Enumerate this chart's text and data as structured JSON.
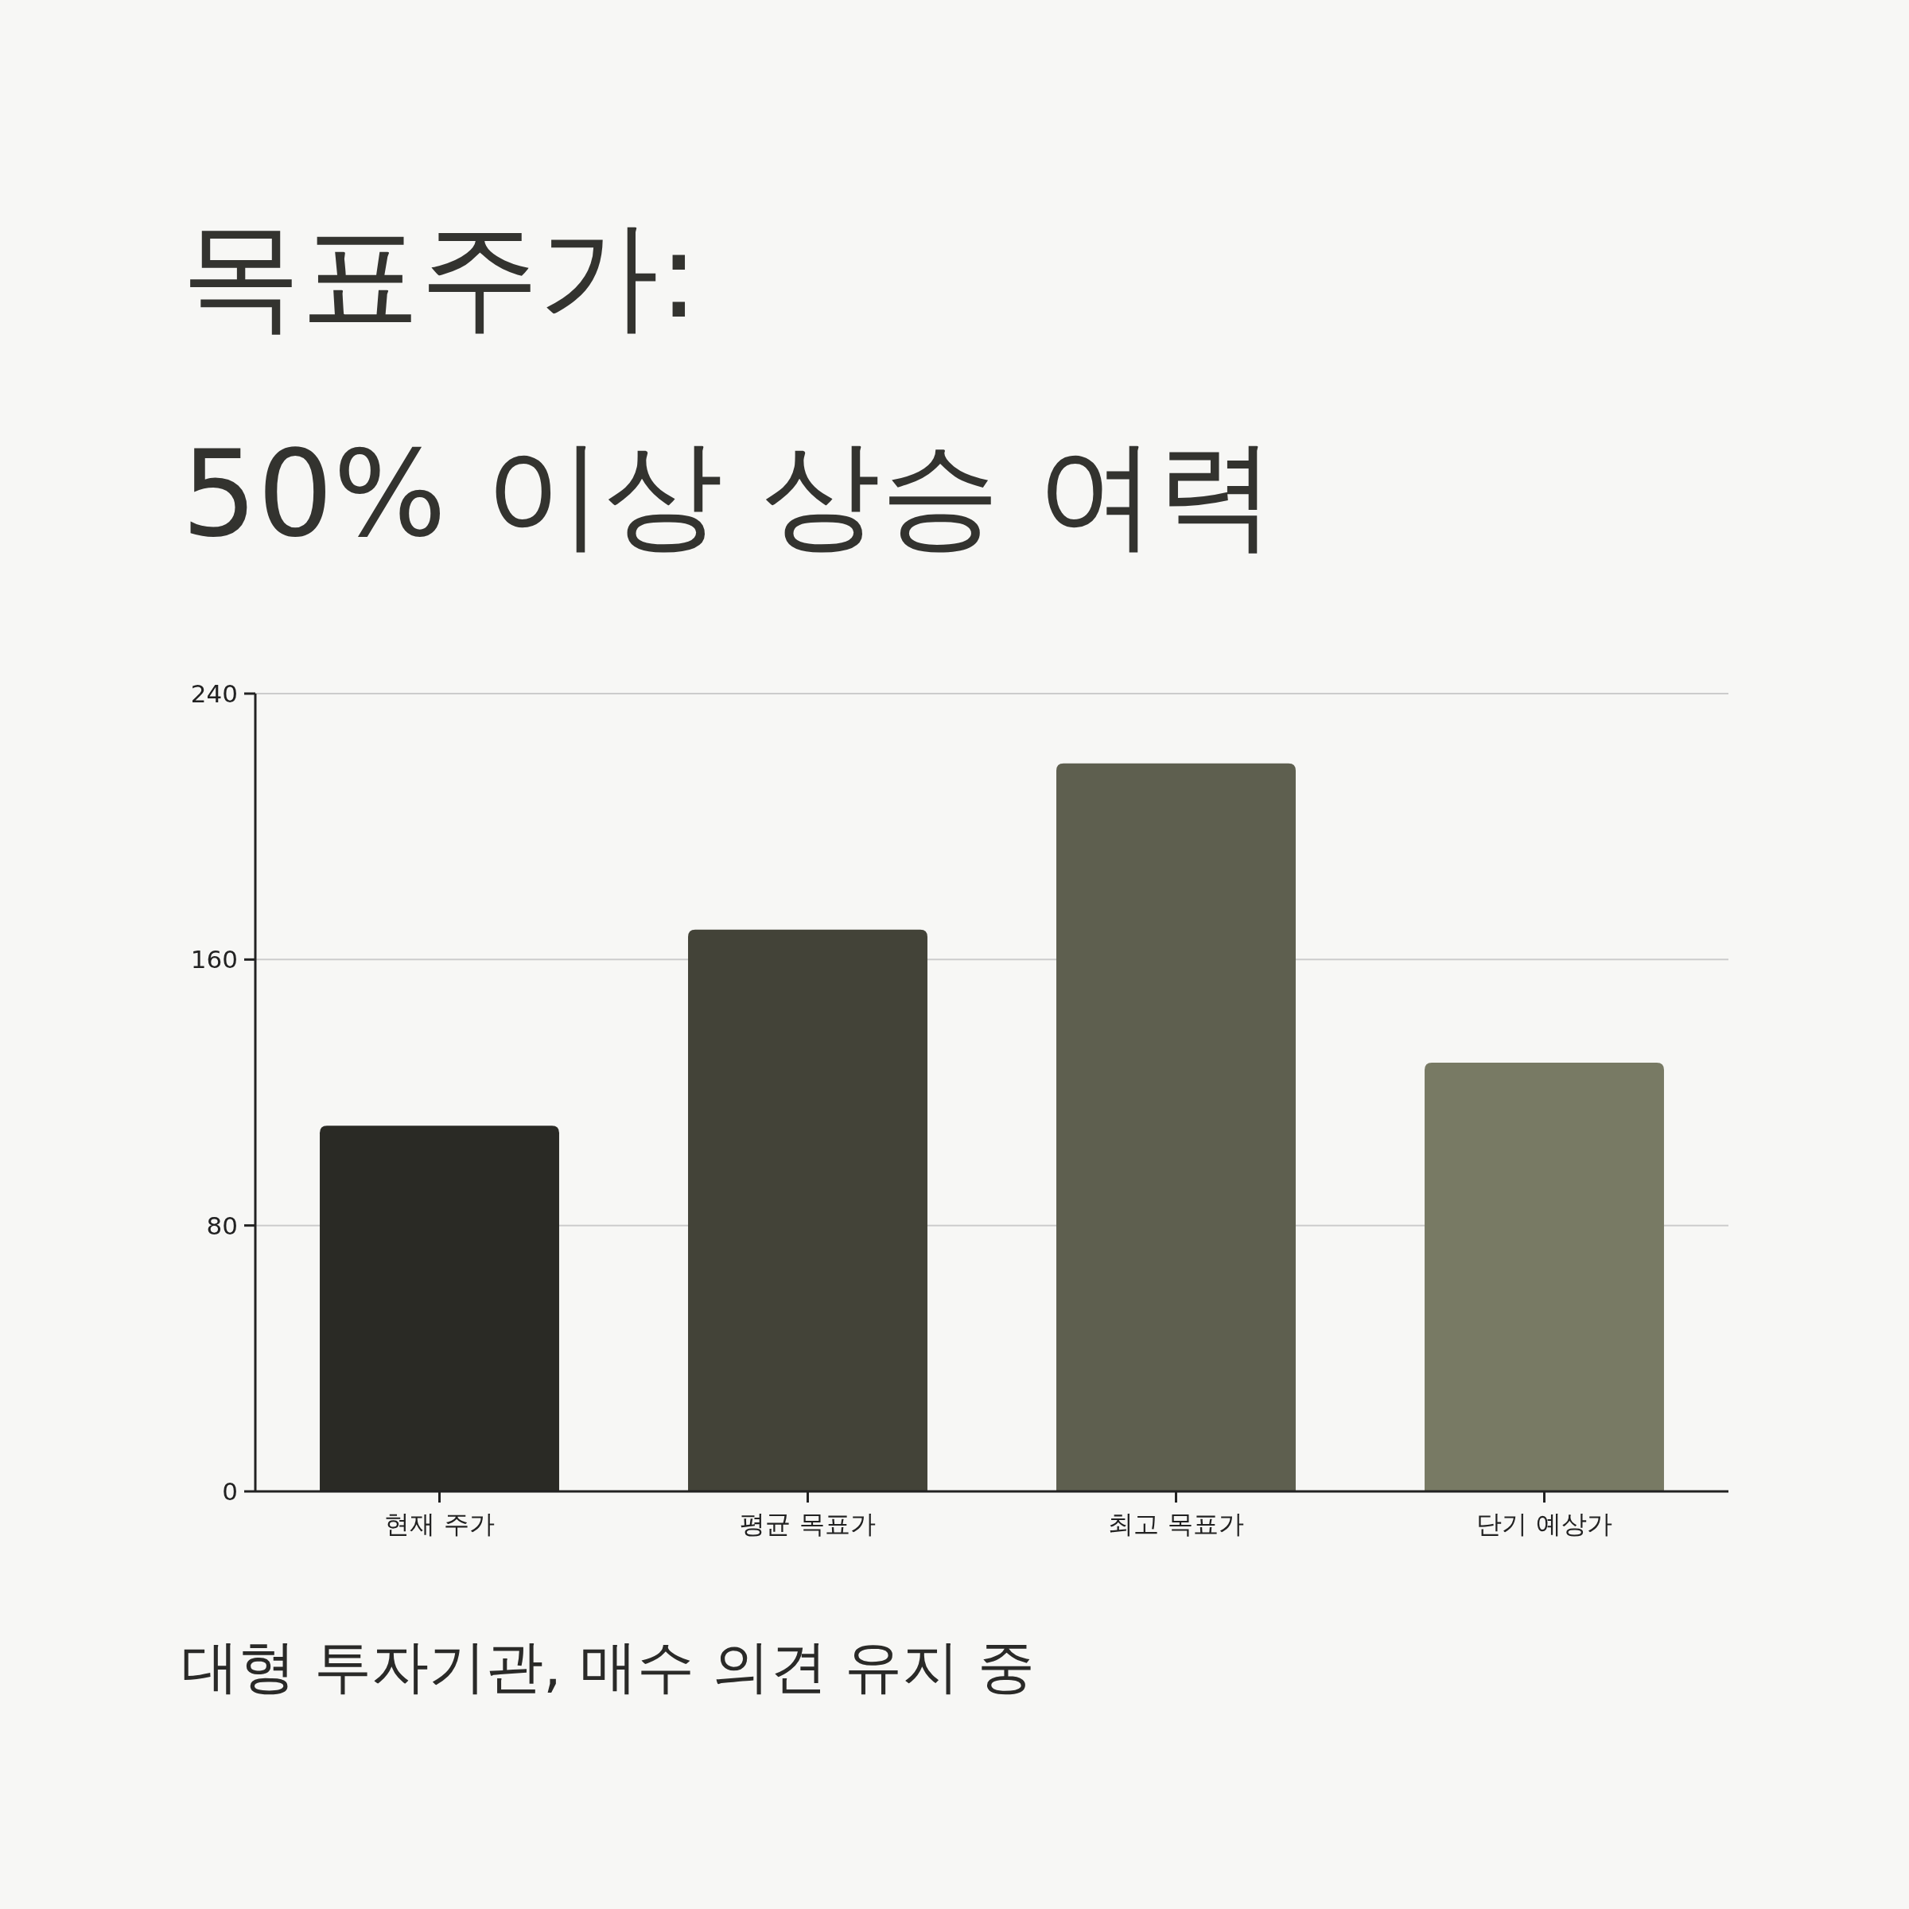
{
  "chart_data": {
    "type": "bar",
    "title": "목표주가:\n50% 이상 상승 여력",
    "categories": [
      "현재 주가",
      "평균 목표가",
      "최고 목표가",
      "단기 예상가"
    ],
    "values": [
      110,
      169,
      219,
      129
    ],
    "colors": [
      "#2a2a25",
      "#434338",
      "#5e5f4f",
      "#787a64"
    ],
    "ylim": [
      0,
      240
    ],
    "yticks": [
      0,
      80,
      160,
      240
    ],
    "grid": "y",
    "annotations": [
      "대형 투자기관, 매수 의견 유지 중"
    ]
  }
}
